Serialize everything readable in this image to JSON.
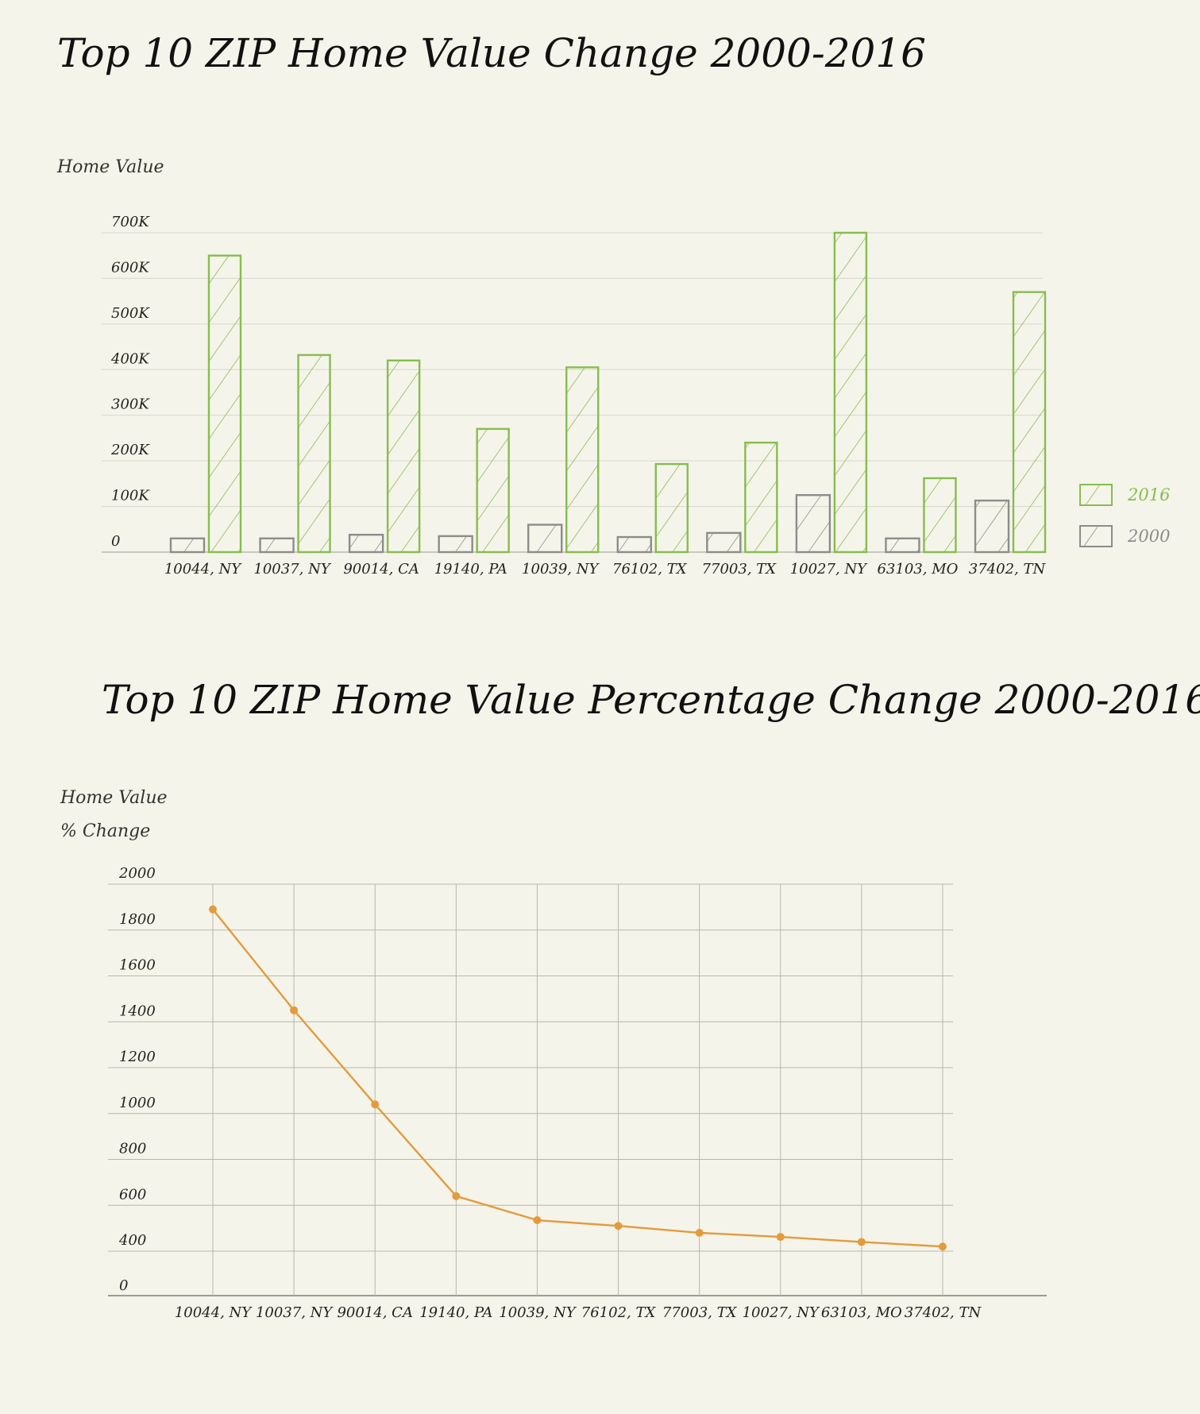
{
  "chart_data": [
    {
      "type": "bar",
      "title": "Top 10 ZIP Home Value Change 2000-2016",
      "ylabel": "Home Value",
      "ylim": [
        0,
        700
      ],
      "yticks": [
        "0",
        "100K",
        "200K",
        "300K",
        "400K",
        "500K",
        "600K",
        "700K"
      ],
      "categories": [
        "10044, NY",
        "10037, NY",
        "90014, CA",
        "19140, PA",
        "10039, NY",
        "76102, TX",
        "77003, TX",
        "10027, NY",
        "63103, MO",
        "37402, TN"
      ],
      "series": [
        {
          "name": "2000",
          "color": "#8c8c8c",
          "values": [
            30,
            30,
            38,
            35,
            60,
            33,
            42,
            125,
            30,
            113
          ]
        },
        {
          "name": "2016",
          "color": "#86bd4f",
          "values": [
            650,
            432,
            420,
            270,
            405,
            193,
            240,
            700,
            162,
            570
          ]
        }
      ],
      "legend": "right",
      "grid": "horizontal"
    },
    {
      "type": "line",
      "title": "Top 10 ZIP Home Value Percentage Change 2000-2016",
      "ylabel": [
        "Home Value",
        "% Change"
      ],
      "ylim": [
        200,
        2000
      ],
      "yticks": [
        "0",
        "400",
        "600",
        "800",
        "1000",
        "1200",
        "1400",
        "1600",
        "1800",
        "2000"
      ],
      "categories": [
        "10044, NY",
        "10037, NY",
        "90014, CA",
        "19140, PA",
        "10039, NY",
        "76102, TX",
        "77003, TX",
        "10027, NY",
        "63103, MO",
        "37402, TN"
      ],
      "series": [
        {
          "color": "#e39b3c",
          "values": [
            1890,
            1450,
            1040,
            640,
            535,
            510,
            480,
            462,
            440,
            420
          ]
        }
      ],
      "grid": "both"
    }
  ]
}
